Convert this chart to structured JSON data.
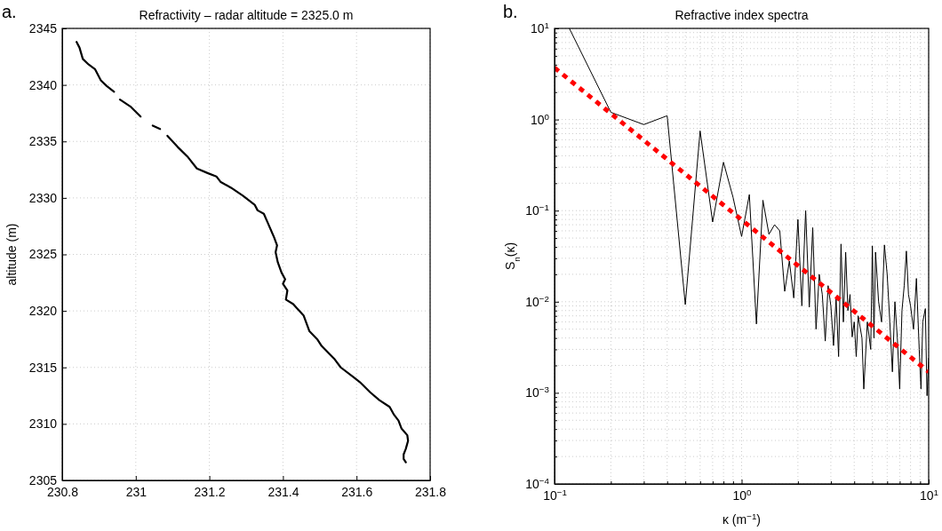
{
  "chart_data": [
    {
      "type": "line",
      "title": "Refractivity – radar altitude = 2325.0 m",
      "ylabel": "altitude (m)",
      "annotations": [
        "a."
      ],
      "xlim": [
        230.8,
        231.8
      ],
      "xticks": [
        230.8,
        231,
        231.2,
        231.4,
        231.6,
        231.8
      ],
      "ylim": [
        2305,
        2345
      ],
      "yticks": [
        2305,
        2310,
        2315,
        2320,
        2325,
        2330,
        2335,
        2340,
        2345
      ],
      "grid": true,
      "series": [
        {
          "color": "#000000",
          "x": [
            230.839,
            230.847,
            230.856,
            230.872,
            230.889,
            230.905,
            230.921,
            230.941,
            230.949,
            230.957,
            230.985,
            231.013,
            231.03,
            231.046,
            231.066,
            231.076,
            231.086,
            231.114,
            231.142,
            231.166,
            231.195,
            231.219,
            231.231,
            231.259,
            231.291,
            231.323,
            231.331,
            231.348,
            231.36,
            231.376,
            231.384,
            231.38,
            231.386,
            231.396,
            231.406,
            231.4,
            231.412,
            231.408,
            231.428,
            231.436,
            231.456,
            231.472,
            231.493,
            231.505,
            231.541,
            231.557,
            231.593,
            231.609,
            231.637,
            231.662,
            231.69,
            231.702,
            231.714,
            231.722,
            231.738,
            231.74,
            231.734,
            231.728,
            231.728,
            231.734
          ],
          "values": [
            2343.8,
            2343.3,
            2342.3,
            2341.8,
            2341.4,
            2340.4,
            2339.9,
            2339.4,
            null,
            2338.7,
            2338.1,
            2337.2,
            null,
            2336.4,
            2336.1,
            null,
            2335.5,
            2334.5,
            2333.6,
            2332.6,
            2332.2,
            2331.9,
            2331.4,
            2330.9,
            2330.2,
            2329.4,
            2328.9,
            2328.6,
            2327.7,
            2326.5,
            2325.8,
            2325.2,
            2324.3,
            2323.4,
            2322.8,
            2322.4,
            2321.8,
            2321.0,
            2320.6,
            2320.3,
            2319.6,
            2318.2,
            2317.5,
            2316.9,
            2315.7,
            2315.0,
            2314.1,
            2313.7,
            2312.8,
            2312.1,
            2311.5,
            2310.8,
            2310.3,
            2309.6,
            2309.0,
            2308.5,
            2307.8,
            2307.3,
            2306.9,
            2306.6
          ]
        }
      ]
    },
    {
      "type": "line",
      "title": "Refractive index spectra",
      "xlabel": "κ (m$^{−1}$)",
      "ylabel": "S$_{n}$(κ)",
      "annotations": [
        "b."
      ],
      "log": "xy",
      "grid": true,
      "xlim": [
        0.1,
        10
      ],
      "xticks": [
        {
          "value": 0.1,
          "label": "10$^{−1}$"
        },
        {
          "value": 0.2,
          "label": null
        },
        {
          "value": 0.3,
          "label": null
        },
        {
          "value": 0.4,
          "label": null
        },
        {
          "value": 0.5,
          "label": null
        },
        {
          "value": 0.6,
          "label": null
        },
        {
          "value": 0.7,
          "label": null
        },
        {
          "value": 0.8,
          "label": null
        },
        {
          "value": 0.9,
          "label": null
        },
        {
          "value": 1,
          "label": "10$^{0}$"
        },
        {
          "value": 2,
          "label": null
        },
        {
          "value": 3,
          "label": null
        },
        {
          "value": 4,
          "label": null
        },
        {
          "value": 5,
          "label": null
        },
        {
          "value": 6,
          "label": null
        },
        {
          "value": 7,
          "label": null
        },
        {
          "value": 8,
          "label": null
        },
        {
          "value": 9,
          "label": null
        },
        {
          "value": 10,
          "label": "10$^{1}$"
        }
      ],
      "ylim": [
        0.0001,
        10
      ],
      "yticks": [
        {
          "value": 0.0001,
          "label": "10$^{−4}$"
        },
        {
          "value": 0.0002,
          "label": null
        },
        {
          "value": 0.0003,
          "label": null
        },
        {
          "value": 0.0004,
          "label": null
        },
        {
          "value": 0.0005,
          "label": null
        },
        {
          "value": 0.0006,
          "label": null
        },
        {
          "value": 0.0007,
          "label": null
        },
        {
          "value": 0.0008,
          "label": null
        },
        {
          "value": 0.0009,
          "label": null
        },
        {
          "value": 0.001,
          "label": "10$^{−3}$"
        },
        {
          "value": 0.002,
          "label": null
        },
        {
          "value": 0.003,
          "label": null
        },
        {
          "value": 0.004,
          "label": null
        },
        {
          "value": 0.005,
          "label": null
        },
        {
          "value": 0.006,
          "label": null
        },
        {
          "value": 0.007,
          "label": null
        },
        {
          "value": 0.008,
          "label": null
        },
        {
          "value": 0.009,
          "label": null
        },
        {
          "value": 0.01,
          "label": "10$^{−2}$"
        },
        {
          "value": 0.02,
          "label": null
        },
        {
          "value": 0.03,
          "label": null
        },
        {
          "value": 0.04,
          "label": null
        },
        {
          "value": 0.05,
          "label": null
        },
        {
          "value": 0.06,
          "label": null
        },
        {
          "value": 0.07,
          "label": null
        },
        {
          "value": 0.08,
          "label": null
        },
        {
          "value": 0.09,
          "label": null
        },
        {
          "value": 0.1,
          "label": "10$^{−1}$"
        },
        {
          "value": 0.2,
          "label": null
        },
        {
          "value": 0.3,
          "label": null
        },
        {
          "value": 0.4,
          "label": null
        },
        {
          "value": 0.5,
          "label": null
        },
        {
          "value": 0.6,
          "label": null
        },
        {
          "value": 0.7,
          "label": null
        },
        {
          "value": 0.8,
          "label": null
        },
        {
          "value": 0.9,
          "label": null
        },
        {
          "value": 1,
          "label": "10$^{0}$"
        },
        {
          "value": 2,
          "label": null
        },
        {
          "value": 3,
          "label": null
        },
        {
          "value": 4,
          "label": null
        },
        {
          "value": 5,
          "label": null
        },
        {
          "value": 6,
          "label": null
        },
        {
          "value": 7,
          "label": null
        },
        {
          "value": 8,
          "label": null
        },
        {
          "value": 9,
          "label": null
        },
        {
          "value": 10,
          "label": "10$^{1}$"
        }
      ],
      "series": [
        {
          "color": "#000000",
          "x": [
            0.12,
            0.2,
            0.3,
            0.4,
            0.5,
            0.6,
            0.7,
            0.8,
            0.9,
            1.0,
            1.1,
            1.2,
            1.3,
            1.4,
            1.5,
            1.6,
            1.7,
            1.8,
            1.9,
            2.0,
            2.1,
            2.2,
            2.3,
            2.4,
            2.5,
            2.6,
            2.7,
            2.8,
            2.9,
            3.0,
            3.1,
            3.2,
            3.3,
            3.4,
            3.5,
            3.6,
            3.7,
            3.8,
            3.9,
            4.0,
            4.1,
            4.2,
            4.4,
            4.5,
            4.7,
            4.9,
            5.0,
            5.1,
            5.2,
            5.4,
            5.6,
            5.8,
            6.0,
            6.2,
            6.4,
            6.6,
            6.8,
            7.0,
            7.2,
            7.4,
            7.6,
            7.8,
            8.0,
            8.3,
            8.6,
            8.9,
            9.1,
            9.3,
            9.6,
            9.8,
            10
          ],
          "values": [
            10,
            1.2,
            0.88,
            1.1,
            0.0093,
            0.75,
            0.075,
            0.34,
            0.14,
            0.052,
            0.15,
            0.0057,
            0.13,
            0.055,
            0.07,
            0.06,
            0.013,
            0.028,
            0.011,
            0.08,
            0.009,
            0.1,
            0.0087,
            0.065,
            0.005,
            0.02,
            0.012,
            0.0037,
            0.015,
            0.009,
            0.0033,
            0.011,
            0.0025,
            0.043,
            0.006,
            0.035,
            0.008,
            0.012,
            0.0041,
            0.006,
            0.0025,
            0.007,
            0.004,
            0.0011,
            0.006,
            0.003,
            0.041,
            0.004,
            0.035,
            0.01,
            0.006,
            0.042,
            0.02,
            0.006,
            0.0017,
            0.01,
            0.004,
            0.0011,
            0.008,
            0.015,
            0.036,
            0.012,
            0.009,
            0.005,
            0.018,
            0.003,
            0.0011,
            0.006,
            0.0084,
            0.00093,
            0.0024
          ]
        },
        {
          "color": "#ff0000",
          "line_style": "dotted",
          "x": [
            0.1,
            10
          ],
          "values": [
            3.7,
            0.0017
          ]
        }
      ]
    }
  ]
}
